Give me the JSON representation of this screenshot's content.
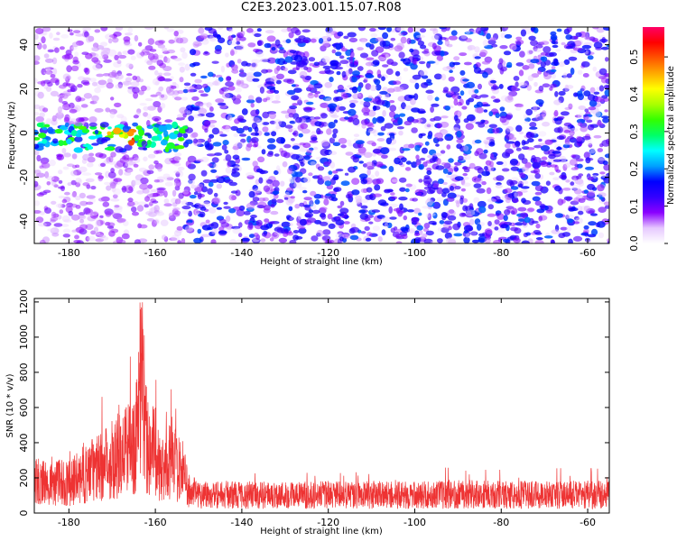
{
  "title": "C2E3.2023.001.15.07.R08",
  "chart_data": [
    {
      "type": "heatmap",
      "xlabel": "Height of straight line (km)",
      "ylabel": "Frequency (Hz)",
      "xlim": [
        -188,
        -55
      ],
      "ylim": [
        -50,
        48
      ],
      "xticks": [
        -180,
        -160,
        -140,
        -120,
        -100,
        -80,
        -60
      ],
      "yticks": [
        -40,
        -20,
        0,
        20,
        40
      ],
      "colorbar": {
        "label": "Normalized spectral amplitude",
        "range": [
          0.0,
          0.58
        ],
        "ticks": [
          0.0,
          0.1,
          0.2,
          0.3,
          0.4,
          0.5
        ],
        "colors": [
          "#ffffff",
          "#e6c8ff",
          "#8a00ff",
          "#3300ff",
          "#0000ff",
          "#00a0ff",
          "#00ffff",
          "#00ff66",
          "#33ff00",
          "#aaff00",
          "#ffff00",
          "#ffaa00",
          "#ff5500",
          "#ff0000",
          "#ff0066"
        ]
      },
      "features": {
        "signal_band": {
          "x_range": [
            -188,
            -153
          ],
          "freq_center_hz": -2,
          "freq_halfwidth_hz": 6,
          "peak_amplitude": 0.5,
          "peak_x": -168
        },
        "low_power_region": {
          "x_range": [
            -188,
            -153
          ],
          "typical_amplitude": 0.05
        },
        "noise_region": {
          "x_range": [
            -153,
            -55
          ],
          "typical_amplitude": 0.12
        }
      }
    },
    {
      "type": "line",
      "xlabel": "Height of straight line (km)",
      "ylabel": "SNR (10 * v/v)",
      "xlim": [
        -188,
        -55
      ],
      "ylim": [
        0,
        1220
      ],
      "xticks": [
        -180,
        -160,
        -140,
        -120,
        -100,
        -80,
        -60
      ],
      "yticks": [
        0,
        200,
        400,
        600,
        800,
        1000,
        1200
      ],
      "color": "#ee3333",
      "series": [
        {
          "x": [
            -188,
            -185,
            -182,
            -180,
            -178,
            -176,
            -174,
            -172,
            -170,
            -168,
            -166,
            -165,
            -164,
            -163.5,
            -163,
            -162.5,
            -162,
            -161,
            -160,
            -159,
            -158,
            -157,
            -156,
            -155,
            -154,
            -153,
            -152,
            -150,
            -145,
            -140,
            -135,
            -130,
            -125,
            -120,
            -115,
            -110,
            -105,
            -100,
            -95,
            -90,
            -85,
            -80,
            -75,
            -70,
            -65,
            -60,
            -55
          ],
          "y": [
            290,
            250,
            270,
            260,
            300,
            350,
            380,
            420,
            480,
            520,
            560,
            620,
            760,
            1200,
            1100,
            900,
            640,
            580,
            520,
            400,
            350,
            520,
            470,
            420,
            390,
            300,
            180,
            170,
            160,
            160,
            155,
            160,
            155,
            160,
            155,
            160,
            155,
            155,
            160,
            170,
            165,
            160,
            160,
            160,
            160,
            160,
            160
          ]
        }
      ]
    }
  ]
}
